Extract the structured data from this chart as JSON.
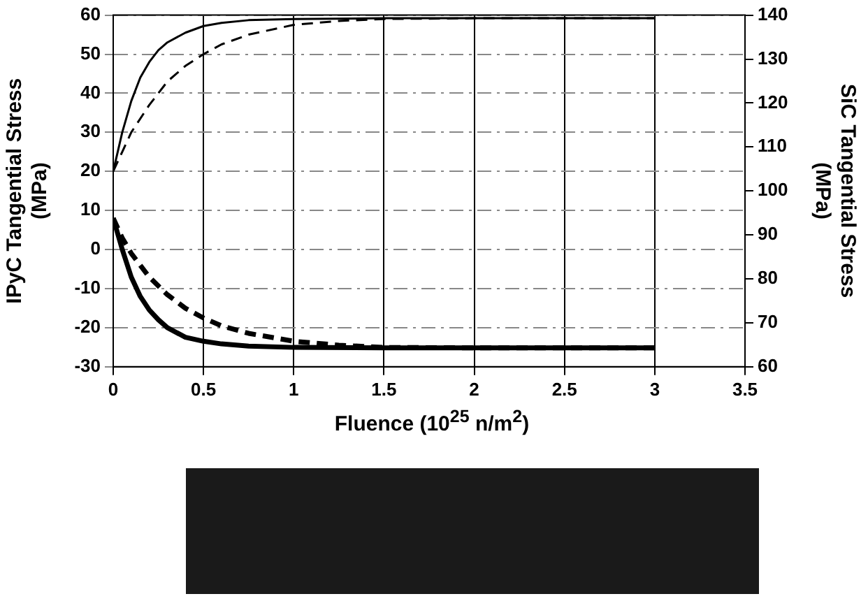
{
  "chart_data": {
    "type": "line",
    "xlabel": "Fluence (10$^{25}$ n/m$^{2}$)",
    "ylabel": "IPyC Tangential Stress\n(MPa)",
    "y2label": "SiC Tangential Stress\n(MPa)",
    "xlim": [
      0,
      3.5
    ],
    "xticks": [
      0,
      0.5,
      1,
      1.5,
      2,
      2.5,
      3,
      3.5
    ],
    "ylim": [
      -30,
      60
    ],
    "yticks": [
      -30,
      -20,
      -10,
      0,
      10,
      20,
      30,
      40,
      50,
      60
    ],
    "y2lim": [
      60,
      140
    ],
    "y2ticks": [
      60,
      70,
      80,
      90,
      100,
      110,
      120,
      130,
      140
    ],
    "grid": true,
    "legend": false,
    "marker": "none",
    "series": [
      {
        "color": "#000000",
        "line_style": "solid",
        "x": [
          0,
          0.05,
          0.1,
          0.15,
          0.2,
          0.25,
          0.3,
          0.4,
          0.5,
          0.6,
          0.75,
          1,
          1.5,
          2,
          3
        ],
        "values": [
          20,
          30,
          38,
          44,
          48,
          51,
          53,
          55.5,
          57.2,
          58,
          58.7,
          59,
          59.2,
          59.2,
          59.2
        ]
      },
      {
        "color": "#000000",
        "line_style": "dashed",
        "x": [
          0,
          0.05,
          0.1,
          0.2,
          0.3,
          0.4,
          0.5,
          0.6,
          0.75,
          1,
          1.25,
          1.5,
          2,
          3
        ],
        "values": [
          20,
          25,
          30,
          37,
          43,
          47,
          50,
          52.5,
          55,
          57.5,
          58.5,
          59,
          59.2,
          59.2
        ]
      },
      {
        "color": "#000000",
        "line_style": "solid",
        "axis": "y2",
        "x": [
          0,
          0.05,
          0.1,
          0.15,
          0.2,
          0.25,
          0.3,
          0.4,
          0.5,
          0.6,
          0.75,
          1,
          1.5,
          2,
          3
        ],
        "values": [
          93.8,
          86.7,
          80.4,
          76,
          72.9,
          70.7,
          68.9,
          66.7,
          65.8,
          65.2,
          64.7,
          64.4,
          64.3,
          64.3,
          64.3
        ]
      },
      {
        "color": "#000000",
        "line_style": "dashed",
        "axis": "y2",
        "x": [
          0,
          0.05,
          0.1,
          0.2,
          0.3,
          0.4,
          0.5,
          0.6,
          0.75,
          1,
          1.25,
          1.5,
          2,
          3
        ],
        "values": [
          93.8,
          89.3,
          85.8,
          80.4,
          76.4,
          73.3,
          71.1,
          69.3,
          67.6,
          65.8,
          64.9,
          64.4,
          64.3,
          64.3
        ]
      }
    ]
  }
}
